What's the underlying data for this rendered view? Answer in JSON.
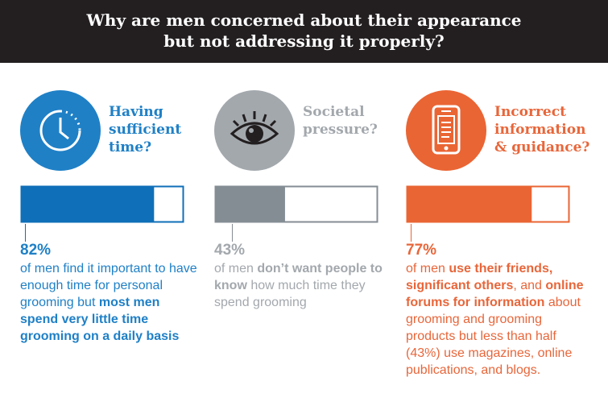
{
  "header": {
    "title_lines": [
      "Why are men concerned about their appearance",
      "but not addressing it properly?"
    ]
  },
  "xlim": [
    0,
    100
  ],
  "panels": [
    {
      "heading_lines": [
        "Having",
        "sufficient",
        "time?"
      ],
      "color": "#0f6fb8",
      "text_color": "#1f80c6",
      "value": 82,
      "value_label": "82%",
      "segments": [
        {
          "text": "of men find it important to have enough time for personal grooming but ",
          "bold": false
        },
        {
          "text": "most men spend very little time grooming on a daily basis",
          "bold": true
        }
      ]
    },
    {
      "heading_lines": [
        "Societal",
        "pressure?"
      ],
      "color": "#858d94",
      "text_color": "#a3a8ad",
      "value": 43,
      "value_label": "43%",
      "segments": [
        {
          "text": "of men ",
          "bold": false
        },
        {
          "text": "don’t want people to know",
          "bold": true
        },
        {
          "text": " how much time they spend grooming",
          "bold": false
        }
      ]
    },
    {
      "heading_lines": [
        "Incorrect",
        "information",
        "& guidance?"
      ],
      "color": "#ea6534",
      "text_color": "#e8663a",
      "value": 77,
      "value_label": "77%",
      "segments": [
        {
          "text": "of men ",
          "bold": false
        },
        {
          "text": "use their friends, significant others",
          "bold": true
        },
        {
          "text": ", and ",
          "bold": false
        },
        {
          "text": "online forums for information",
          "bold": true
        },
        {
          "text": " about grooming and grooming products but less than half (43%) use magazines, online publications, and blogs.",
          "bold": false
        }
      ]
    }
  ]
}
